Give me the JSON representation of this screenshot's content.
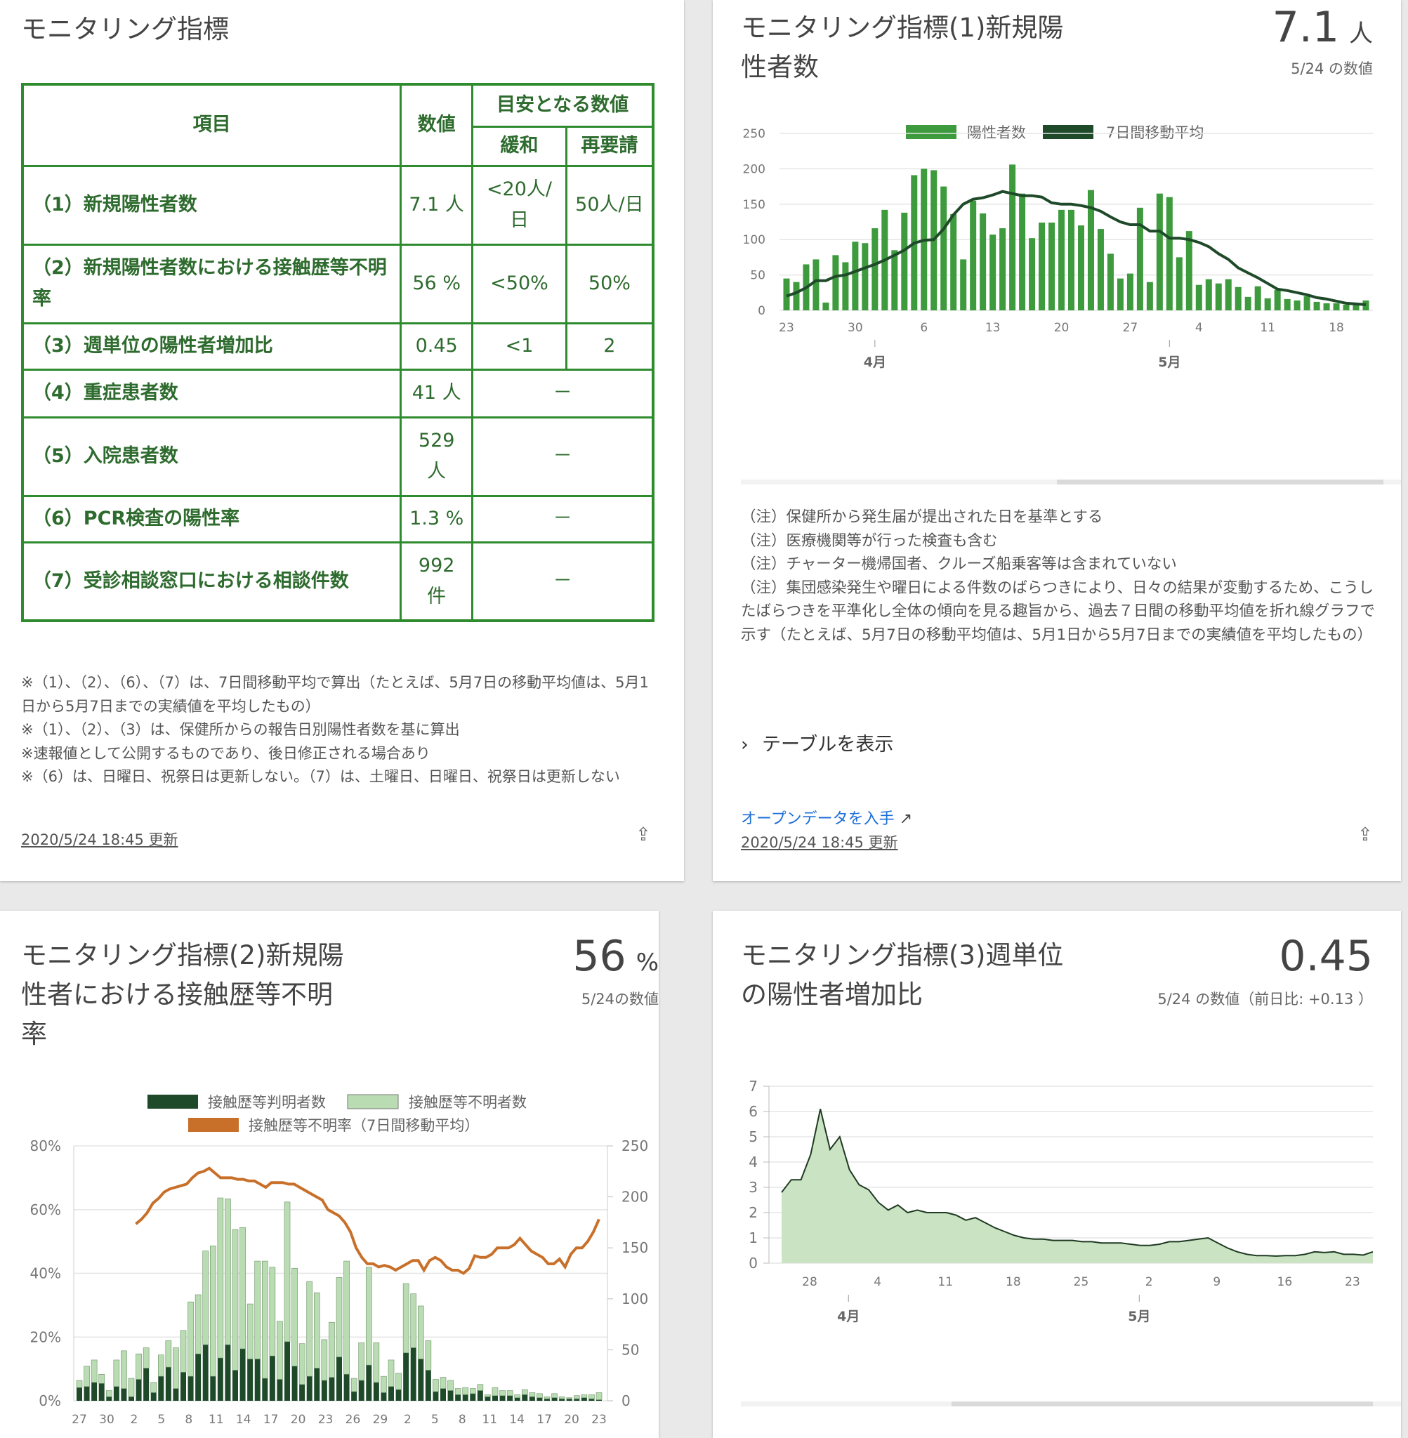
{
  "top_left": {
    "title": "モニタリング指標",
    "table": {
      "h_item": "項目",
      "h_value": "数値",
      "h_guide": "目安となる数値",
      "h_relax": "緩和",
      "h_rerequest": "再要請",
      "rows": [
        {
          "item": "（1）新規陽性者数",
          "value": "7.1 人",
          "relax": "<20人/日",
          "rerequest": "50人/日"
        },
        {
          "item": "（2）新規陽性者数における接触歴等不明率",
          "value": "56 %",
          "relax": "<50%",
          "rerequest": "50%"
        },
        {
          "item": "（3）週単位の陽性者増加比",
          "value": "0.45",
          "relax": "<1",
          "rerequest": "2"
        },
        {
          "item": "（4）重症患者数",
          "value": "41 人",
          "dash": "－"
        },
        {
          "item": "（5）入院患者数",
          "value": "529 人",
          "dash": "－"
        },
        {
          "item": "（6）PCR検査の陽性率",
          "value": "1.3 %",
          "dash": "－"
        },
        {
          "item": "（7）受診相談窓口における相談件数",
          "value": "992 件",
          "dash": "－"
        }
      ]
    },
    "notes": [
      "※（1）、（2）、（6）、（7）は、7日間移動平均で算出（たとえば、5月7日の移動平均値は、5月1日から5月7日までの実績値を平均したもの）",
      "※（1）、（2）、（3）は、保健所からの報告日別陽性者数を基に算出",
      "※速報値として公開するものであり、後日修正される場合あり",
      "※（6）は、日曜日、祝祭日は更新しない。（7）は、土曜日、日曜日、祝祭日は更新しない"
    ],
    "updated": "2020/5/24 18:45 更新"
  },
  "top_right": {
    "title": "モニタリング指標(1)新規陽性者数",
    "big_value": "7.1",
    "big_unit": "人",
    "sub": "5/24 の数値",
    "notes": [
      "（注）保健所から発生届が提出された日を基準とする",
      "（注）医療機関等が行った検査も含む",
      "（注）チャーター機帰国者、クルーズ船乗客等は含まれていない",
      "（注）集団感染発生や曜日による件数のばらつきにより、日々の結果が変動するため、こうしたばらつきを平準化し全体の傾向を見る趣旨から、過去７日間の移動平均値を折れ線グラフで示す（たとえば、5月7日の移動平均値は、5月1日から5月7日までの実績値を平均したもの）"
    ],
    "toggle_label": "テーブルを表示",
    "open_data": "オープンデータを入手",
    "updated": "2020/5/24 18:45 更新"
  },
  "bottom_left": {
    "title": "モニタリング指標(2)新規陽性者における接触歴等不明率",
    "big_value": "56",
    "big_unit": "%",
    "sub": "5/24の数値"
  },
  "bottom_right": {
    "title": "モニタリング指標(3)週単位の陽性者増加比",
    "big_value": "0.45",
    "sub": "5/24 の数値（前日比: +0.13 ）"
  },
  "colors": {
    "bar_green": "#3d9a3d",
    "avg_line": "#1f4a2a",
    "known_bar": "#1f4a2a",
    "unknown_bar": "#b9dcb2",
    "rate_line": "#c8702a",
    "area_fill": "#c9e3c3"
  },
  "chart_data": [
    {
      "type": "bar",
      "title": "モニタリング指標(1)新規陽性者数",
      "x_start": "2020-03-23",
      "x_ticks": [
        "23",
        "30",
        "6",
        "13",
        "20",
        "27",
        "4",
        "11",
        "18"
      ],
      "month_labels": [
        "4月",
        "5月"
      ],
      "ylim": [
        0,
        250
      ],
      "y_ticks": [
        0,
        50,
        100,
        150,
        200,
        250
      ],
      "series": [
        {
          "name": "陽性者数",
          "kind": "bar",
          "values": [
            45,
            40,
            65,
            72,
            11,
            78,
            68,
            97,
            95,
            116,
            142,
            85,
            138,
            191,
            200,
            198,
            175,
            136,
            72,
            155,
            137,
            107,
            116,
            206,
            165,
            102,
            124,
            124,
            142,
            142,
            120,
            170,
            115,
            80,
            45,
            52,
            145,
            40,
            165,
            160,
            75,
            112,
            36,
            44,
            38,
            44,
            33,
            19,
            34,
            17,
            29,
            16,
            14,
            20,
            12,
            10,
            10,
            8,
            9,
            14
          ]
        },
        {
          "name": "7日間移動平均",
          "kind": "line",
          "values": [
            20,
            25,
            32,
            42,
            42,
            48,
            50,
            55,
            60,
            65,
            71,
            78,
            85,
            95,
            99,
            100,
            115,
            135,
            150,
            157,
            159,
            163,
            168,
            165,
            162,
            162,
            160,
            152,
            150,
            150,
            148,
            145,
            140,
            132,
            125,
            121,
            121,
            112,
            112,
            102,
            102,
            100,
            96,
            90,
            80,
            72,
            60,
            53,
            46,
            38,
            30,
            28,
            25,
            22,
            18,
            16,
            13,
            10,
            9,
            8
          ]
        }
      ]
    },
    {
      "type": "bar",
      "title": "モニタリング指標(2)新規陽性者における接触歴等不明率",
      "x_start": "2020-03-27",
      "x_ticks": [
        "27",
        "30",
        "2",
        "5",
        "8",
        "11",
        "14",
        "17",
        "20",
        "23",
        "26",
        "29",
        "2",
        "5",
        "8",
        "11",
        "14",
        "17",
        "20",
        "23"
      ],
      "y_left_ticks": [
        "0%",
        "20%",
        "40%",
        "60%",
        "80%"
      ],
      "y_right_ticks": [
        0,
        50,
        100,
        150,
        200,
        250
      ],
      "ylim_left": [
        0,
        80
      ],
      "ylim_right": [
        0,
        250
      ],
      "series": [
        {
          "name": "接触歴等判明者数",
          "kind": "stacked-bar",
          "values": [
            13,
            14,
            18,
            17,
            4,
            14,
            12,
            4,
            21,
            32,
            8,
            24,
            33,
            12,
            28,
            24,
            46,
            55,
            24,
            42,
            55,
            30,
            51,
            41,
            41,
            22,
            44,
            21,
            58,
            34,
            16,
            24,
            32,
            20,
            23,
            43,
            26,
            9,
            20,
            35,
            18,
            8,
            14,
            11,
            47,
            52,
            41,
            30,
            9,
            12,
            10,
            6,
            6,
            7,
            10,
            4,
            5,
            5,
            5,
            3,
            6,
            4,
            3,
            2,
            3,
            2,
            2,
            2,
            3,
            2,
            1
          ]
        },
        {
          "name": "接触歴等不明者数",
          "kind": "stacked-bar",
          "values": [
            7,
            20,
            22,
            9,
            6,
            26,
            37,
            18,
            25,
            20,
            10,
            21,
            26,
            40,
            41,
            73,
            58,
            92,
            128,
            157,
            143,
            138,
            119,
            54,
            96,
            115,
            87,
            57,
            137,
            96,
            40,
            93,
            74,
            40,
            54,
            78,
            111,
            13,
            37,
            96,
            39,
            16,
            26,
            16,
            68,
            53,
            52,
            29,
            12,
            11,
            10,
            6,
            7,
            5,
            6,
            2,
            8,
            5,
            5,
            3,
            5,
            4,
            4,
            2,
            4,
            2,
            1,
            3,
            3,
            4,
            7
          ]
        },
        {
          "name": "接触歴等不明率（7日間移動平均）",
          "kind": "line",
          "values_pct": [
            null,
            null,
            null,
            null,
            null,
            null,
            null,
            null,
            null,
            null,
            55.5,
            57,
            59,
            62,
            63.5,
            65.5,
            66.5,
            67,
            67.5,
            68,
            70,
            71.5,
            72,
            73,
            71.5,
            70,
            70,
            70,
            69.5,
            69.5,
            69,
            69,
            68,
            67,
            68.5,
            68.5,
            68.5,
            68,
            68,
            67,
            66,
            65,
            64,
            63,
            60,
            59,
            58,
            56,
            53,
            48,
            45,
            43,
            43,
            42,
            42.5,
            42,
            41,
            42,
            43,
            44,
            44,
            41,
            44,
            45,
            44,
            42,
            41,
            41,
            40,
            41.5,
            45.5,
            45,
            45,
            46,
            48,
            48,
            48,
            49,
            51,
            49,
            47,
            46,
            45,
            43,
            43,
            44.5,
            42,
            46,
            48,
            48,
            50,
            53,
            57
          ]
        }
      ]
    },
    {
      "type": "area",
      "title": "モニタリング指標(3)週単位の陽性者増加比",
      "x_start": "2020-03-28",
      "x_ticks": [
        "28",
        "4",
        "11",
        "18",
        "25",
        "2",
        "9",
        "16",
        "23"
      ],
      "month_labels": [
        "4月",
        "5月"
      ],
      "ylim": [
        0,
        7
      ],
      "y_ticks": [
        0,
        1,
        2,
        3,
        4,
        5,
        6,
        7
      ],
      "values": [
        2.8,
        3.3,
        3.3,
        4.3,
        6.1,
        4.5,
        5.0,
        3.7,
        3.1,
        2.9,
        2.4,
        2.1,
        2.3,
        2.0,
        2.1,
        2.0,
        2.0,
        2.0,
        1.9,
        1.7,
        1.8,
        1.6,
        1.4,
        1.25,
        1.1,
        1.0,
        0.95,
        0.95,
        0.9,
        0.9,
        0.9,
        0.85,
        0.85,
        0.8,
        0.8,
        0.8,
        0.75,
        0.7,
        0.7,
        0.75,
        0.85,
        0.85,
        0.9,
        0.95,
        1.0,
        0.8,
        0.6,
        0.45,
        0.35,
        0.3,
        0.3,
        0.28,
        0.3,
        0.3,
        0.35,
        0.45,
        0.42,
        0.45,
        0.35,
        0.35,
        0.32,
        0.45
      ]
    }
  ]
}
